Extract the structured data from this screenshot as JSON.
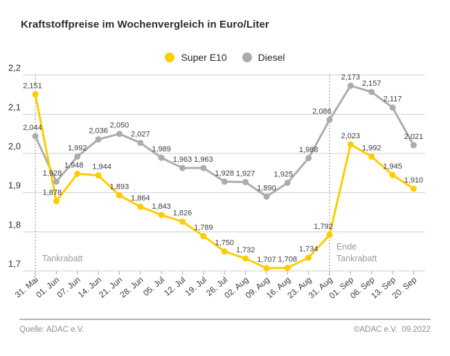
{
  "chart_data": {
    "type": "line",
    "title": "Kraftstoffpreise im Wochenvergleich in Euro/Liter",
    "unit": "Euro/Liter",
    "categories": [
      "31. Mai",
      "01. Jun",
      "07. Jun",
      "14. Jun",
      "21. Jun",
      "28. Jun",
      "05. Jul",
      "12. Jul",
      "19. Jul",
      "26. Jul",
      "02. Aug",
      "09. Aug",
      "16. Aug",
      "23. Aug",
      "31. Aug",
      "01. Sep",
      "06. Sep",
      "13. Sep",
      "20. Sep"
    ],
    "series": [
      {
        "name": "Super E10",
        "color": "#FFCC00",
        "values": [
          2.151,
          1.878,
          1.948,
          1.944,
          1.893,
          1.864,
          1.843,
          1.826,
          1.789,
          1.75,
          1.732,
          1.707,
          1.708,
          1.734,
          1.792,
          2.023,
          1.992,
          1.945,
          1.91
        ]
      },
      {
        "name": "Diesel",
        "color": "#ACACAC",
        "values": [
          2.044,
          1.928,
          1.992,
          2.036,
          2.05,
          2.027,
          1.989,
          1.963,
          1.963,
          1.928,
          1.927,
          1.89,
          1.925,
          1.988,
          2.086,
          2.173,
          2.157,
          2.117,
          2.021
        ]
      }
    ],
    "ylim": [
      1.7,
      2.2
    ],
    "ytick_step": 0.1,
    "ytick_labels": [
      "1,7",
      "1,8",
      "1,9",
      "2,0",
      "2,1",
      "2,2"
    ],
    "decimal_separator": ",",
    "grid": "horizontal",
    "legend_position": "top-center",
    "annotations": [
      {
        "lines": [
          "Tankrabatt"
        ],
        "x_index": 0,
        "side": "right"
      },
      {
        "lines": [
          "Ende",
          "Tankrabatt"
        ],
        "x_index": 14,
        "side": "right"
      }
    ],
    "annotation_color": "#9a9a9a",
    "gridline_color": "#cfcfcf",
    "label_color": "#3c3c3c"
  },
  "footer": {
    "source": "Quelle: ADAC e.V.",
    "copyright": "©ADAC e.V.  09.2022"
  }
}
